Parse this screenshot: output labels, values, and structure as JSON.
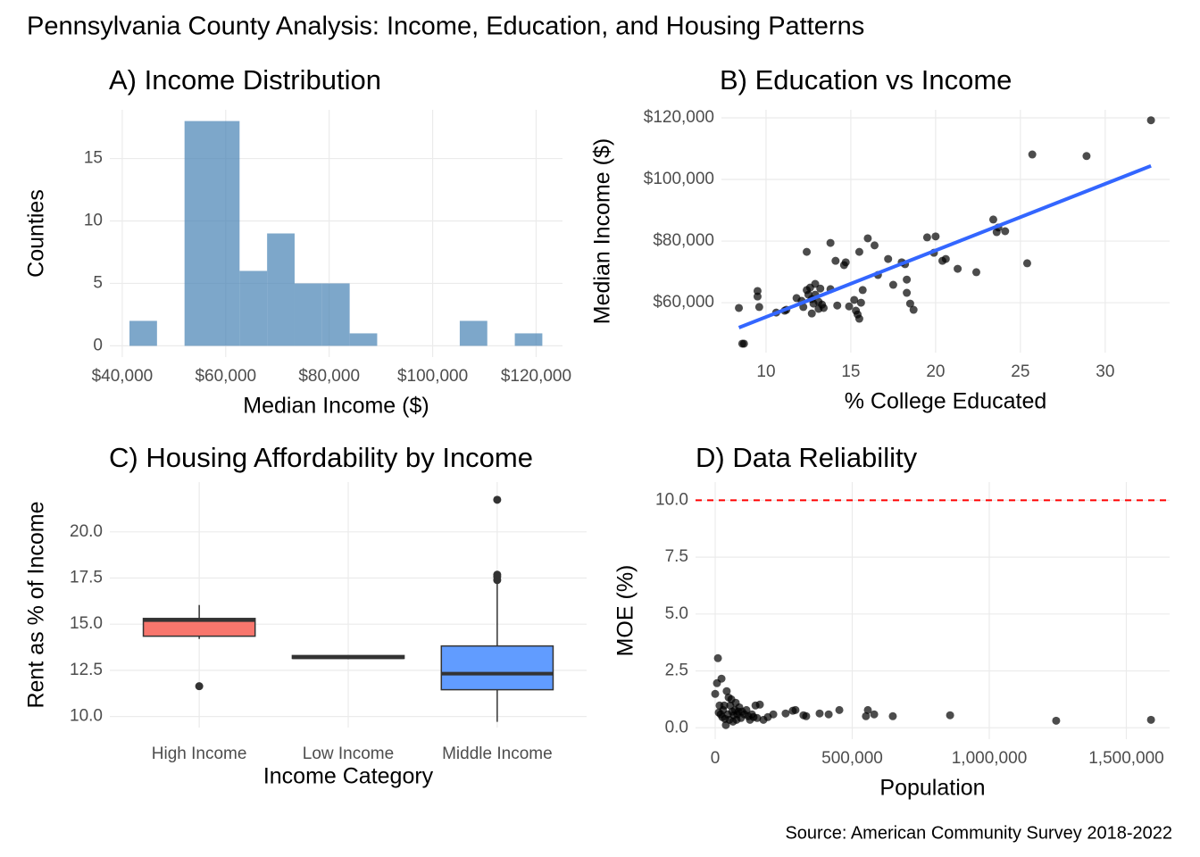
{
  "title": "Pennsylvania County Analysis: Income, Education, and Housing Patterns",
  "caption": "Source: American Community Survey 2018-2022",
  "chart_data": [
    {
      "type": "histogram",
      "title": "A) Income Distribution",
      "x_label": "Median Income ($)",
      "y_label": "Counties",
      "bins": [
        41400,
        46720,
        52040,
        57360,
        62680,
        68000,
        73320,
        78640,
        83960,
        89280,
        94600,
        99920,
        105240,
        110560,
        115880,
        121200
      ],
      "values": [
        2,
        0,
        18,
        18,
        6,
        9,
        5,
        5,
        1,
        0,
        0,
        0,
        2,
        0,
        1
      ],
      "color": "#4682b4",
      "opacity": 0.7,
      "xlim": [
        37600,
        125100
      ],
      "xticks": [
        {
          "value": 40000,
          "label": "$40,000"
        },
        {
          "value": 60000,
          "label": "$60,000"
        },
        {
          "value": 80000,
          "label": "$80,000"
        },
        {
          "value": 100000,
          "label": "$100,000"
        },
        {
          "value": 120000,
          "label": "$120,000"
        }
      ],
      "ylim": [
        -0.9,
        18.9
      ],
      "yticks": [
        0,
        5,
        10,
        15
      ],
      "grid": true
    },
    {
      "type": "scatter",
      "title": "B) Education vs Income",
      "x_label": "% College Educated",
      "y_label": "Median Income ($)",
      "x": [
        8.4,
        8.6,
        8.7,
        9.5,
        9.5,
        9.6,
        10.6,
        11.1,
        11.2,
        11.8,
        12.1,
        12.2,
        12.4,
        12.4,
        12.5,
        12.6,
        12.7,
        12.7,
        12.8,
        12.9,
        13.1,
        13.1,
        13.2,
        13.3,
        13.4,
        12.9,
        13.8,
        13.8,
        14.1,
        14.2,
        14.6,
        14.7,
        14.9,
        15.2,
        15.3,
        15.4,
        15.5,
        15.5,
        15.6,
        15.7,
        16.0,
        16.4,
        16.6,
        17.2,
        17.5,
        18.0,
        18.2,
        18.3,
        18.3,
        18.5,
        18.7,
        19.5,
        20.0,
        19.9,
        20.4,
        20.6,
        21.3,
        22.4,
        23.4,
        23.6,
        23.7,
        24.1,
        25.4,
        25.7,
        28.9,
        32.7
      ],
      "values": [
        58300,
        46700,
        46700,
        63800,
        62000,
        58600,
        56800,
        57400,
        57700,
        61500,
        60600,
        58600,
        76500,
        64100,
        62600,
        64900,
        61200,
        56500,
        59700,
        66100,
        58000,
        60300,
        64600,
        59400,
        58300,
        62600,
        64400,
        79400,
        73600,
        59100,
        72200,
        73100,
        58800,
        60900,
        57400,
        56200,
        54800,
        76500,
        60000,
        64100,
        80900,
        78600,
        69000,
        74200,
        65800,
        73100,
        72500,
        67500,
        63200,
        59700,
        57700,
        81200,
        81500,
        76200,
        73600,
        74200,
        71000,
        69900,
        87000,
        82900,
        84400,
        83200,
        72800,
        108100,
        107600,
        119200
      ],
      "color": "#000000",
      "opacity": 0.7,
      "trendline": {
        "color": "#3366ff",
        "x": [
          8.4,
          32.7
        ],
        "y": [
          51900,
          104400
        ]
      },
      "xlim": [
        7.37,
        33.8
      ],
      "xticks": [
        10,
        15,
        20,
        25,
        30
      ],
      "ylim": [
        43800,
        122600
      ],
      "yticks": [
        {
          "value": 60000,
          "label": "$60,000"
        },
        {
          "value": 80000,
          "label": "$80,000"
        },
        {
          "value": 100000,
          "label": "$100,000"
        },
        {
          "value": 120000,
          "label": "$120,000"
        }
      ],
      "grid": true
    },
    {
      "type": "box",
      "title": "C) Housing Affordability by Income",
      "x_label": "Income Category",
      "y_label": "Rent as % of Income",
      "categories": [
        "High Income",
        "Low Income",
        "Middle Income"
      ],
      "boxes": [
        {
          "min": 14.2,
          "q1": 14.35,
          "median": 15.22,
          "q3": 15.31,
          "max": 16.04,
          "outliers": [
            11.64
          ]
        },
        {
          "min": 13.1,
          "q1": 13.15,
          "median": 13.2,
          "q3": 13.3,
          "max": 13.3,
          "outliers": []
        },
        {
          "min": 9.71,
          "q1": 11.45,
          "median": 12.32,
          "q3": 13.82,
          "max": 17.2,
          "outliers": [
            17.39,
            17.58,
            17.68,
            21.74
          ]
        }
      ],
      "colors": [
        "#f8766d",
        "#00ba38",
        "#619cff"
      ],
      "ylim": [
        9.4,
        22.7
      ],
      "yticks": [
        {
          "value": 10,
          "label": "10.0"
        },
        12.5,
        {
          "value": 15,
          "label": "15.0"
        },
        17.5,
        {
          "value": 20,
          "label": "20.0"
        }
      ],
      "grid": true
    },
    {
      "type": "scatter",
      "title": "D) Data Reliability",
      "x_label": "Population",
      "y_label": "MOE (%)",
      "x": [
        10000,
        6500,
        23000,
        0,
        16000,
        13000,
        29000,
        36000,
        42000,
        49000,
        55000,
        62000,
        68000,
        75000,
        81000,
        88000,
        94000,
        107000,
        121000,
        134000,
        147000,
        153000,
        163000,
        176000,
        192000,
        212000,
        257000,
        283000,
        293000,
        322000,
        332000,
        381000,
        414000,
        453000,
        550000,
        557000,
        580000,
        648000,
        857000,
        1244000,
        1590000,
        20000,
        26000,
        33000,
        39000,
        46000,
        52000,
        59000,
        65000,
        72000,
        78000,
        85000,
        98000,
        114000,
        127000,
        140000
      ],
      "values": [
        3.06,
        1.96,
        2.16,
        1.49,
        0.98,
        0.67,
        0.78,
        0.39,
        1.61,
        1.33,
        0.98,
        0.71,
        0.55,
        1.1,
        0.59,
        0.9,
        0.43,
        0.59,
        0.51,
        0.59,
        0.98,
        0.43,
        1.02,
        0.35,
        0.47,
        0.59,
        0.63,
        0.75,
        0.78,
        0.55,
        0.51,
        0.63,
        0.59,
        0.78,
        0.51,
        0.78,
        0.59,
        0.51,
        0.55,
        0.31,
        0.35,
        0.59,
        0.47,
        0.98,
        0.12,
        0.59,
        0.35,
        1.25,
        0.27,
        0.78,
        0.35,
        0.71,
        0.71,
        0.78,
        0.35,
        0.47
      ],
      "color": "#000000",
      "opacity": 0.7,
      "reference_line": {
        "value": 10,
        "color": "#ff0000",
        "dashed": true
      },
      "xlim": [
        -71700,
        1658000
      ],
      "xticks": [
        0,
        {
          "value": 500000,
          "label": "500,000"
        },
        {
          "value": 1000000,
          "label": "1,000,000"
        },
        {
          "value": 1500000,
          "label": "1,500,000"
        }
      ],
      "ylim": [
        -0.5,
        10.8
      ],
      "yticks": [
        {
          "value": 0,
          "label": "0.0"
        },
        2.5,
        {
          "value": 5,
          "label": "5.0"
        },
        7.5,
        {
          "value": 10,
          "label": "10.0"
        }
      ],
      "grid": true
    }
  ]
}
